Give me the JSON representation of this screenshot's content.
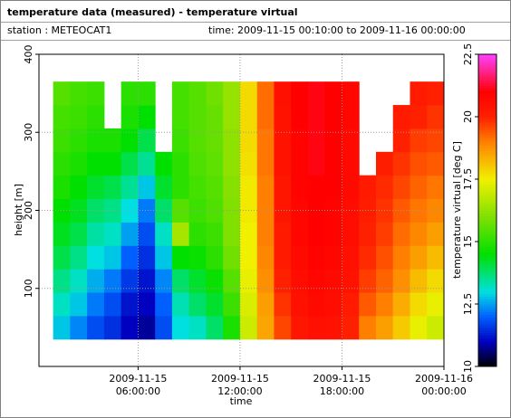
{
  "chart_data": {
    "type": "heatmap",
    "title": "temperature data (measured) - temperature virtual",
    "station": "station : METEOCAT1",
    "time_range": "time: 2009-11-15 00:10:00 to 2009-11-16 00:00:00",
    "xlabel": "time",
    "ylabel": "height [m]",
    "colorbar_label": "temperature virtual [deg C]",
    "xlim": [
      "2009-11-15T00:10:00",
      "2009-11-16T00:00:00"
    ],
    "xticks": [
      {
        "value": "2009-11-15T06:00:00",
        "label": [
          "2009-11-15",
          "06:00:00"
        ]
      },
      {
        "value": "2009-11-15T12:00:00",
        "label": [
          "2009-11-15",
          "12:00:00"
        ]
      },
      {
        "value": "2009-11-15T18:00:00",
        "label": [
          "2009-11-15",
          "18:00:00"
        ]
      },
      {
        "value": "2009-11-16T00:00:00",
        "label": [
          "2009-11-16",
          "00:00:00"
        ]
      }
    ],
    "ylim": [
      0,
      400
    ],
    "yticks": [
      100,
      200,
      300,
      400
    ],
    "zlim": [
      10,
      22.5
    ],
    "zticks": [
      10,
      12.5,
      15,
      17.5,
      20,
      22.5
    ],
    "grid": true,
    "colorscale": [
      [
        10,
        "#000000"
      ],
      [
        11,
        "#0000c0"
      ],
      [
        12,
        "#0060ff"
      ],
      [
        13,
        "#00e0e0"
      ],
      [
        14.5,
        "#00e000"
      ],
      [
        16,
        "#80e000"
      ],
      [
        17.5,
        "#f0f000"
      ],
      [
        19,
        "#ff8000"
      ],
      [
        20,
        "#ff2000"
      ],
      [
        21,
        "#ff0000"
      ],
      [
        22.5,
        "#ff40ff"
      ]
    ],
    "x": [
      "2009-11-15T01:30:00",
      "2009-11-15T02:30:00",
      "2009-11-15T03:30:00",
      "2009-11-15T04:30:00",
      "2009-11-15T05:30:00",
      "2009-11-15T06:30:00",
      "2009-11-15T07:30:00",
      "2009-11-15T08:30:00",
      "2009-11-15T09:30:00",
      "2009-11-15T10:30:00",
      "2009-11-15T11:30:00",
      "2009-11-15T12:30:00",
      "2009-11-15T13:30:00",
      "2009-11-15T14:30:00",
      "2009-11-15T15:30:00",
      "2009-11-15T16:30:00",
      "2009-11-15T17:30:00",
      "2009-11-15T18:30:00",
      "2009-11-15T19:30:00",
      "2009-11-15T20:30:00",
      "2009-11-15T21:30:00",
      "2009-11-15T22:30:00",
      "2009-11-15T23:30:00"
    ],
    "y": [
      50,
      80,
      110,
      140,
      170,
      200,
      230,
      260,
      290,
      320,
      350
    ],
    "values": [
      [
        12.8,
        13.2,
        13.6,
        14,
        14.3,
        14.5,
        14.8,
        15,
        15.2,
        15.3,
        15.5
      ],
      [
        12.3,
        12.8,
        13.2,
        13.6,
        14,
        14.3,
        14.5,
        14.8,
        15,
        15.2,
        15.3
      ],
      [
        11.8,
        12.2,
        12.6,
        13,
        13.4,
        13.8,
        14.2,
        14.5,
        14.8,
        15,
        15.2
      ],
      [
        11.5,
        11.8,
        12.2,
        12.8,
        13.2,
        13.6,
        14,
        14.5,
        14.8,
        null,
        null
      ],
      [
        11,
        11.2,
        11.6,
        12,
        12.5,
        13,
        13.5,
        14,
        14.5,
        14.8,
        15
      ],
      [
        10.8,
        11,
        11.2,
        11.5,
        11.8,
        12.2,
        12.8,
        13.5,
        14,
        14.5,
        15
      ],
      [
        11.8,
        12,
        12.3,
        12.8,
        13.2,
        13.8,
        14.2,
        14.5,
        null,
        null,
        null
      ],
      [
        13,
        13.3,
        13.8,
        14.5,
        16.5,
        15.5,
        15,
        15,
        15.2,
        15.3,
        15.3
      ],
      [
        13.2,
        13.8,
        14.2,
        14.6,
        15,
        15.2,
        15.3,
        15.4,
        15.5,
        15.5,
        15.5
      ],
      [
        13.8,
        14.2,
        14.6,
        15,
        15.2,
        15.4,
        15.5,
        15.6,
        15.7,
        15.7,
        15.8
      ],
      [
        14.8,
        15.2,
        15.5,
        15.8,
        16,
        16,
        16.1,
        16.2,
        16.2,
        16.3,
        16.3
      ],
      [
        17,
        17.2,
        17.4,
        17.5,
        17.5,
        17.6,
        17.6,
        17.7,
        17.8,
        17.8,
        17.8
      ],
      [
        18.5,
        18.6,
        18.8,
        18.9,
        19,
        19,
        19,
        19.1,
        19.1,
        19.2,
        19.2
      ],
      [
        19.6,
        19.8,
        20,
        20.2,
        20.2,
        20.3,
        20.3,
        20.4,
        20.4,
        20.4,
        20.5
      ],
      [
        20.3,
        20.5,
        20.6,
        20.7,
        20.8,
        20.8,
        20.9,
        20.9,
        20.9,
        21,
        21
      ],
      [
        20.5,
        20.7,
        20.8,
        20.9,
        21,
        21,
        21,
        21.1,
        21.1,
        21.1,
        21.1
      ],
      [
        20.4,
        20.6,
        20.7,
        20.8,
        20.9,
        20.9,
        21,
        21,
        21,
        21,
        21
      ],
      [
        20,
        20.2,
        20.4,
        20.5,
        20.6,
        20.6,
        20.7,
        20.7,
        20.7,
        20.8,
        20.8
      ],
      [
        19,
        19.4,
        19.7,
        19.9,
        20,
        20.1,
        20.2,
        null,
        null,
        null,
        null
      ],
      [
        18.6,
        19,
        19.3,
        19.5,
        19.7,
        19.8,
        19.9,
        20.1,
        null,
        null,
        null
      ],
      [
        18,
        18.4,
        18.8,
        19,
        19.2,
        19.4,
        19.6,
        19.8,
        20,
        20.2,
        null
      ],
      [
        17.4,
        17.8,
        18.2,
        18.6,
        18.9,
        19.1,
        19.3,
        19.5,
        19.7,
        20,
        20.2
      ],
      [
        17,
        17.4,
        17.8,
        18.2,
        18.6,
        18.9,
        19.1,
        19.4,
        19.6,
        19.8,
        20
      ]
    ]
  }
}
